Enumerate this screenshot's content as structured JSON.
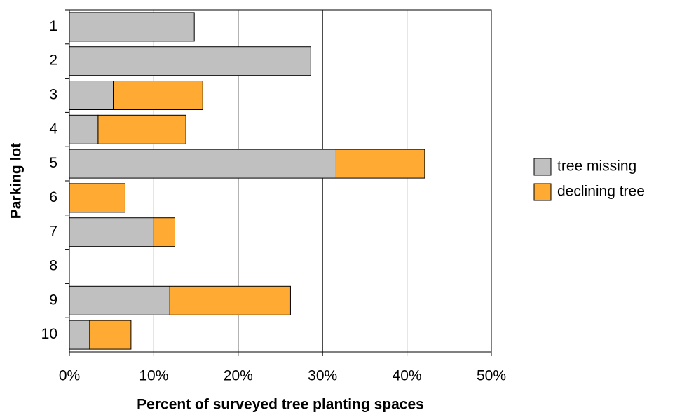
{
  "chart_data": {
    "type": "stacked-bar-horizontal",
    "x_label": "Percent of surveyed tree planting spaces",
    "y_label": "Parking lot",
    "categories": [
      "1",
      "2",
      "3",
      "4",
      "5",
      "6",
      "7",
      "8",
      "9",
      "10"
    ],
    "series": [
      {
        "name": "tree missing",
        "color": "#c0c0c0",
        "values": [
          14.8,
          28.6,
          5.2,
          3.4,
          31.6,
          0,
          10.0,
          0,
          11.9,
          2.4
        ]
      },
      {
        "name": "declining tree",
        "color": "#ffaa33",
        "values": [
          0,
          0,
          10.6,
          10.4,
          10.5,
          6.6,
          2.5,
          0,
          14.3,
          4.9
        ]
      }
    ],
    "xlim": [
      0,
      50
    ],
    "xticks": [
      {
        "value": 0,
        "label": "0%"
      },
      {
        "value": 10,
        "label": "10%"
      },
      {
        "value": 20,
        "label": "20%"
      },
      {
        "value": 30,
        "label": "30%"
      },
      {
        "value": 40,
        "label": "40%"
      },
      {
        "value": 50,
        "label": "50%"
      }
    ],
    "grid": true,
    "legend": "right"
  }
}
